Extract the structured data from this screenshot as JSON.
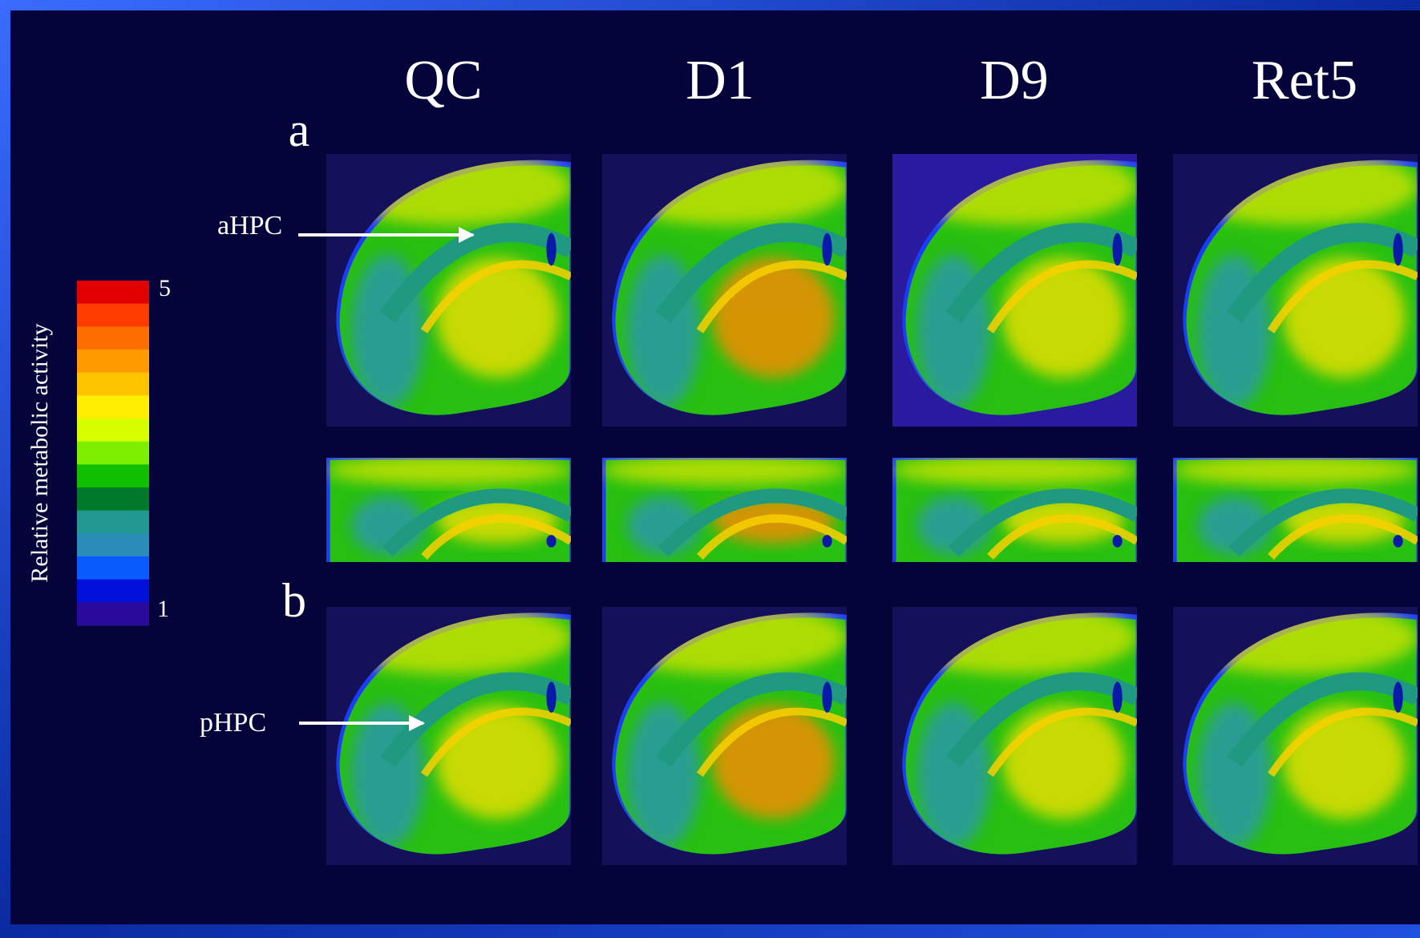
{
  "headers": [
    "QC",
    "D1",
    "D9",
    "Ret5"
  ],
  "rows": [
    {
      "label": "a",
      "annotation": "aHPC"
    },
    {
      "label": "b",
      "annotation": "pHPC"
    }
  ],
  "colorbar": {
    "label": "Relative metabolic activity",
    "max": 5,
    "min": 1,
    "colors": [
      "#e00000",
      "#ff3c00",
      "#ff6e00",
      "#ff9a00",
      "#ffc400",
      "#ffee00",
      "#d8ff00",
      "#7cf000",
      "#10c000",
      "#007a2a",
      "#209890",
      "#2a8cb8",
      "#0a5cff",
      "#0010d8",
      "#2a0a9a"
    ]
  }
}
